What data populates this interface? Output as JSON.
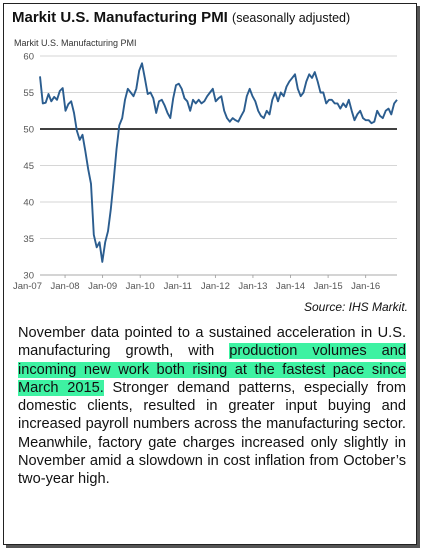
{
  "header": {
    "title": "Markit U.S. Manufacturing PMI",
    "subtitle": "(seasonally adjusted)"
  },
  "source": "Source: IHS Markit.",
  "colors": {
    "line": "#2b5d8f",
    "highlight": "#3ef2a2",
    "reference": "#000000"
  },
  "chart_data": {
    "type": "line",
    "title": "Markit U.S. Manufacturing PMI",
    "xlabel": "",
    "ylabel": "",
    "ylim": [
      30,
      60
    ],
    "yticks": [
      30,
      35,
      40,
      45,
      50,
      55,
      60
    ],
    "xticks": [
      "Jan-07",
      "Jan-08",
      "Jan-09",
      "Jan-10",
      "Jan-11",
      "Jan-12",
      "Jan-13",
      "Jan-14",
      "Jan-15",
      "Jan-16"
    ],
    "reference_line": 50,
    "grid": "horizontal",
    "x_start": "2007-05",
    "x_end": "2016-11",
    "series": [
      {
        "name": "Markit U.S. Manufacturing PMI",
        "values": [
          57.2,
          53.5,
          53.6,
          54.8,
          53.8,
          54.4,
          54.0,
          55.2,
          55.6,
          52.5,
          53.4,
          53.8,
          52.2,
          49.8,
          48.5,
          49.2,
          47.0,
          44.5,
          42.5,
          35.5,
          33.8,
          34.5,
          31.8,
          34.5,
          36.0,
          39.0,
          43.0,
          47.2,
          50.5,
          51.5,
          54.0,
          55.5,
          55.0,
          54.5,
          55.5,
          58.0,
          59.0,
          57.0,
          54.8,
          55.0,
          54.2,
          52.2,
          53.8,
          54.0,
          53.2,
          52.2,
          51.5,
          54.2,
          56.0,
          56.2,
          55.5,
          54.2,
          53.8,
          52.5,
          54.0,
          53.5,
          54.0,
          53.5,
          53.8,
          54.5,
          55.0,
          55.5,
          53.8,
          54.2,
          54.5,
          52.5,
          51.5,
          51.0,
          51.5,
          51.2,
          51.0,
          51.8,
          52.5,
          54.5,
          55.5,
          54.5,
          53.8,
          52.5,
          51.8,
          51.5,
          52.5,
          52.0,
          54.0,
          55.0,
          53.8,
          55.0,
          54.5,
          55.8,
          56.5,
          57.0,
          57.5,
          55.5,
          54.5,
          55.0,
          56.5,
          57.5,
          57.0,
          57.8,
          56.5,
          55.0,
          55.0,
          53.5,
          54.0,
          54.0,
          53.5,
          53.5,
          52.8,
          53.5,
          53.0,
          54.0,
          52.5,
          51.2,
          52.0,
          52.5,
          51.5,
          51.2,
          51.2,
          50.8,
          51.0,
          52.5,
          51.8,
          51.5,
          52.5,
          52.8,
          52.0,
          53.5,
          54.0
        ]
      }
    ]
  },
  "paragraph": {
    "part1": "November data pointed to a sustained acceleration in U.S. manufacturing growth, with ",
    "highlighted": "production volumes and incoming new work both rising at the fastest pace since March 2015.",
    "part2": " Stronger demand patterns, especially from domestic clients, resulted in greater input buying and increased payroll numbers across the manufacturing sector. Meanwhile, factory gate charges increased only slightly in November amid a slowdown in cost inflation from October’s two-year high."
  }
}
